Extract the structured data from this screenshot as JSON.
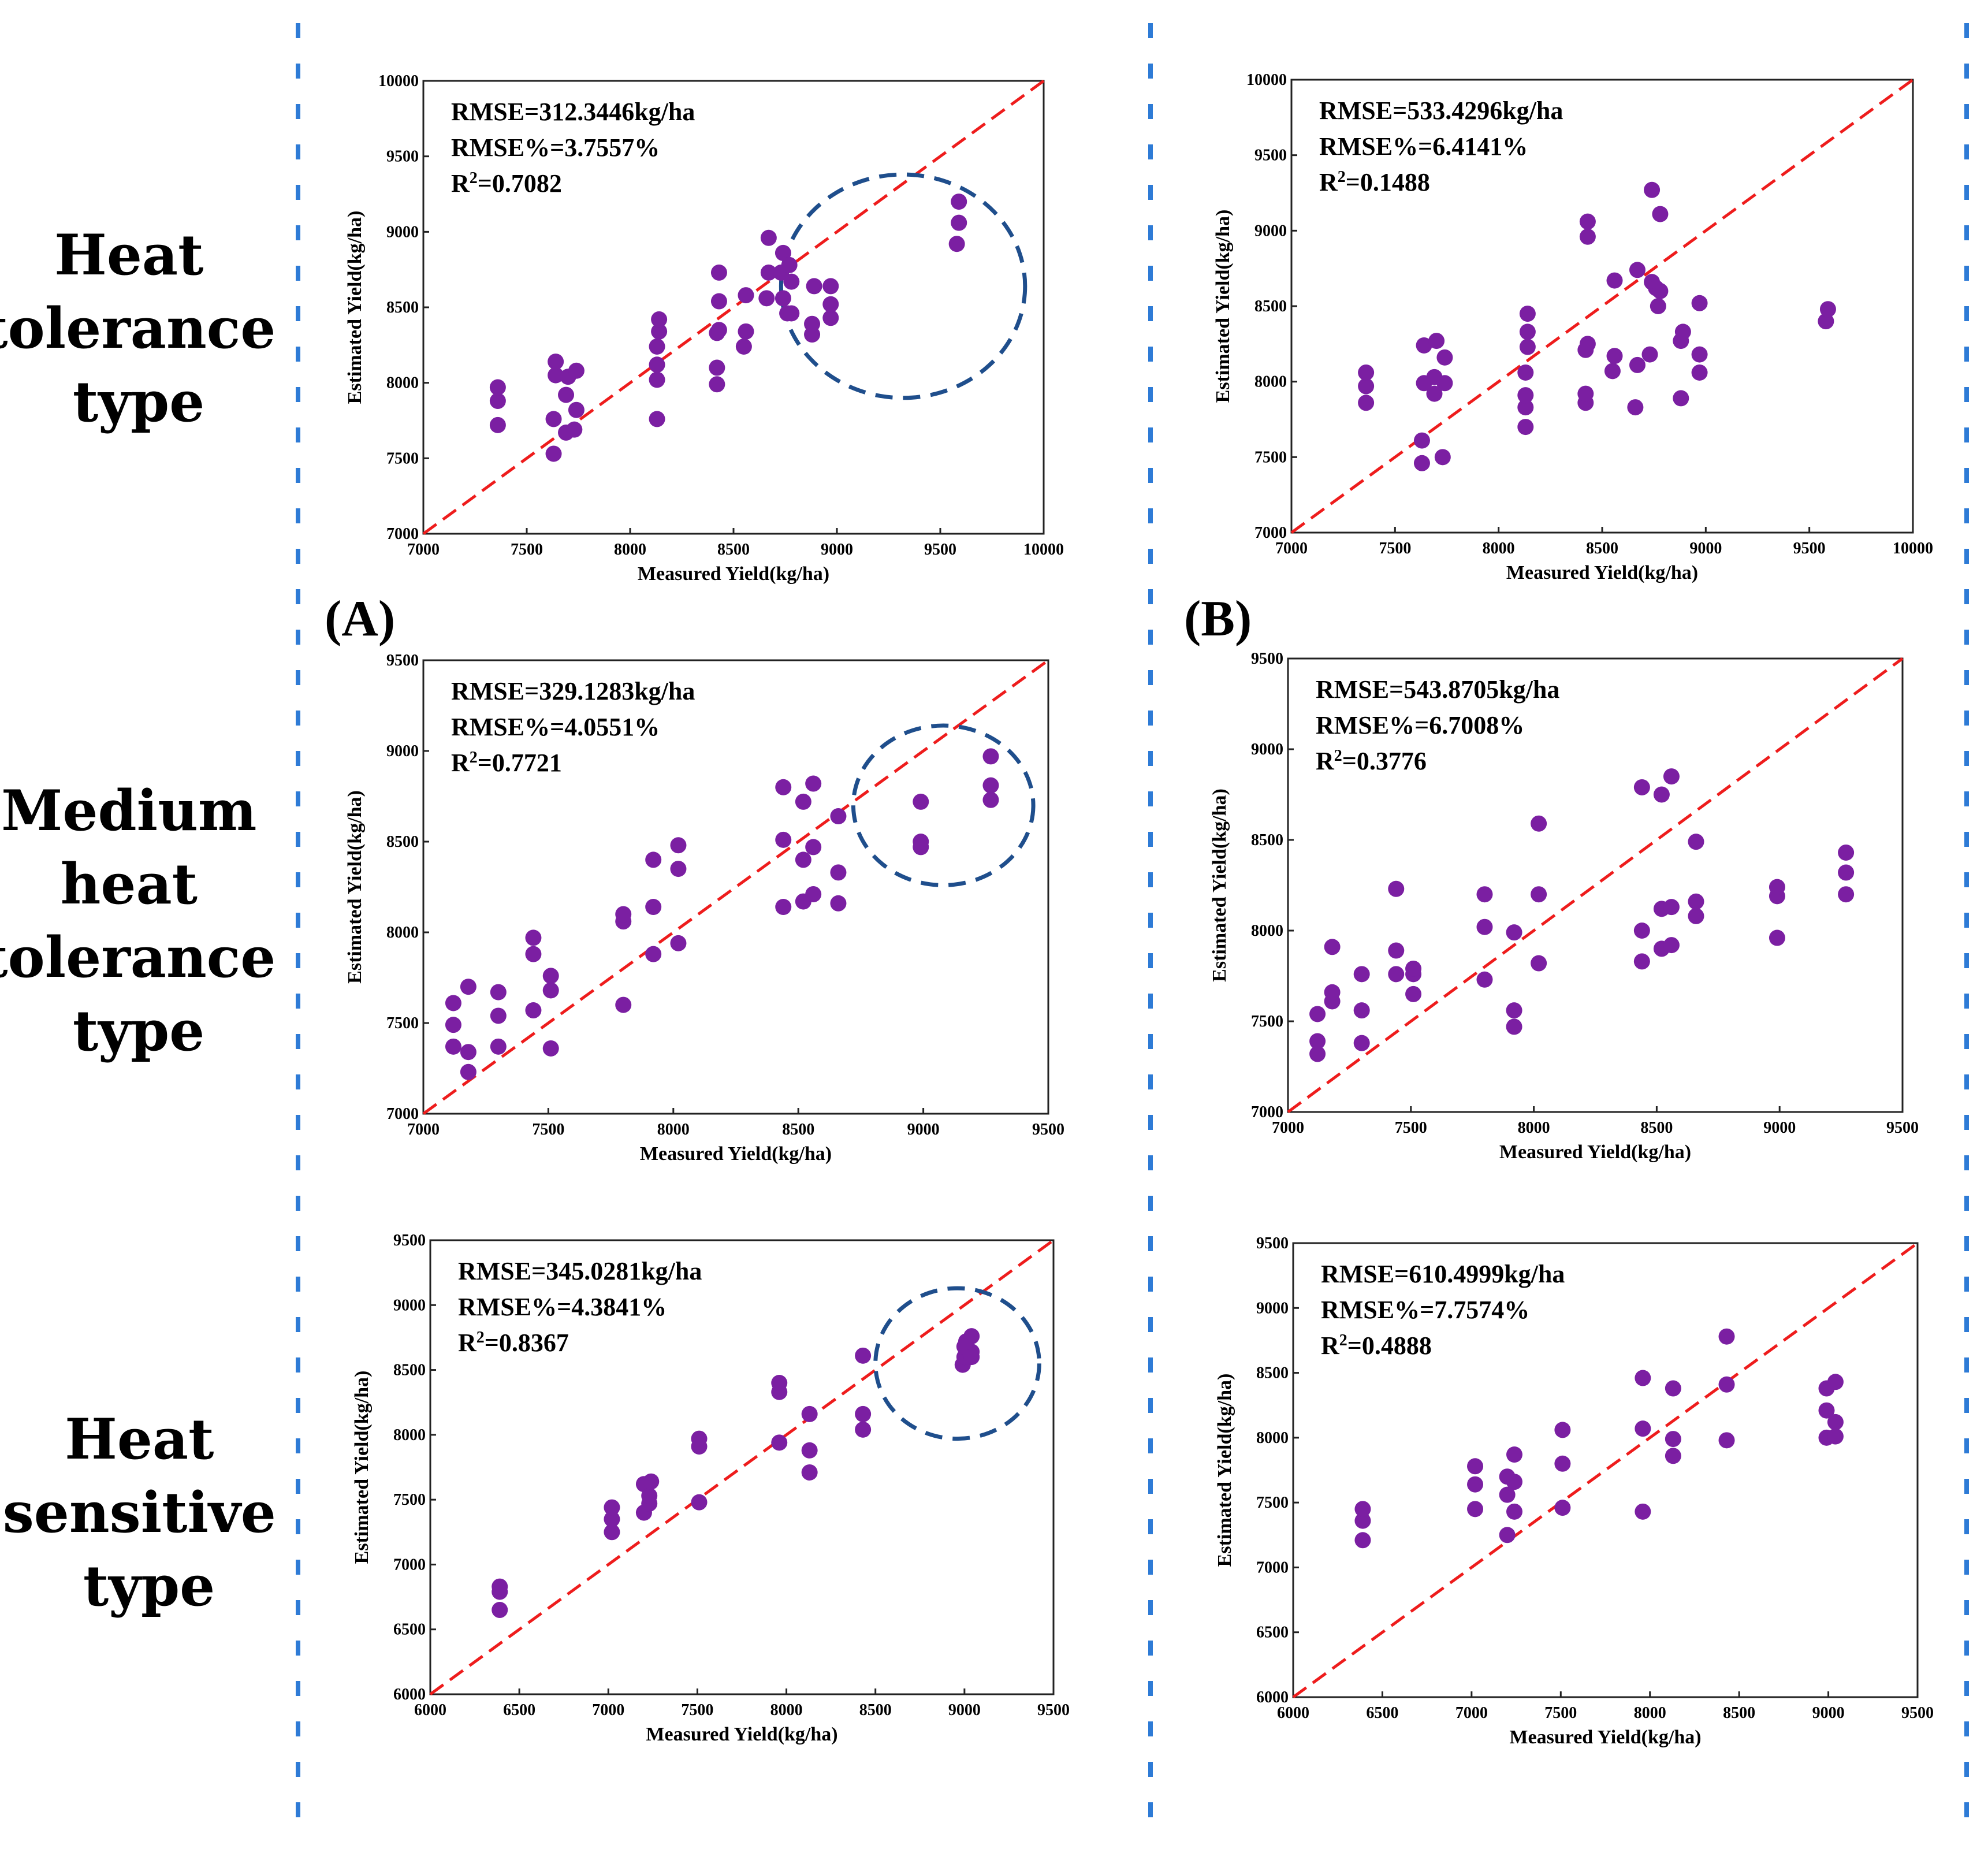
{
  "row_labels": [
    {
      "lines": [
        "Heat",
        "tolerance",
        "type"
      ]
    },
    {
      "lines": [
        "Medium",
        "heat",
        "tolerance",
        "type"
      ]
    },
    {
      "lines": [
        "Heat",
        "sensitive",
        "type"
      ]
    }
  ],
  "column_labels": [
    "(A)",
    "(B)"
  ],
  "colors": {
    "points": "#7b1fa2",
    "diagonal": "#ee1c1c",
    "circle": "#1f4e8c",
    "separator": "#2e7bd6"
  },
  "chart_data": [
    {
      "id": "heat-tolerance-A",
      "type": "scatter",
      "xlabel": "Measured Yield(kg/ha)",
      "ylabel": "Estimated Yield(kg/ha)",
      "xlim": [
        7000,
        10000
      ],
      "ylim": [
        7000,
        10000
      ],
      "xticks": [
        7000,
        7500,
        8000,
        8500,
        9000,
        9500,
        10000
      ],
      "yticks": [
        7000,
        7500,
        8000,
        8500,
        9000,
        9500,
        10000
      ],
      "annotations": [
        "RMSE=312.3446kg/ha",
        "RMSE%=3.7557%",
        "R2=0.7082"
      ],
      "highlight_circle": {
        "center": [
          9320,
          8640
        ],
        "radius": [
          590,
          740
        ]
      },
      "x": [
        7360,
        7360,
        7360,
        7630,
        7630,
        7640,
        7640,
        7690,
        7690,
        7700,
        7730,
        7740,
        7740,
        8130,
        8130,
        8130,
        8130,
        8140,
        8140,
        8420,
        8420,
        8420,
        8430,
        8430,
        8430,
        8550,
        8560,
        8560,
        8660,
        8670,
        8670,
        8730,
        8740,
        8740,
        8760,
        8770,
        8780,
        8780,
        8880,
        8880,
        8890,
        8970,
        8970,
        8970,
        9580,
        9590,
        9590
      ],
      "y": [
        7720,
        7880,
        7970,
        7530,
        7760,
        8050,
        8140,
        7670,
        7920,
        8040,
        7690,
        7820,
        8080,
        7760,
        8020,
        8120,
        8240,
        8340,
        8420,
        7990,
        8100,
        8330,
        8350,
        8540,
        8730,
        8240,
        8340,
        8580,
        8560,
        8730,
        8960,
        8730,
        8560,
        8860,
        8460,
        8780,
        8460,
        8670,
        8320,
        8390,
        8640,
        8430,
        8520,
        8640,
        8920,
        9060,
        9200
      ]
    },
    {
      "id": "heat-tolerance-B",
      "type": "scatter",
      "xlabel": "Measured Yield(kg/ha)",
      "ylabel": "Estimated Yield(kg/ha)",
      "xlim": [
        7000,
        10000
      ],
      "ylim": [
        7000,
        10000
      ],
      "xticks": [
        7000,
        7500,
        8000,
        8500,
        9000,
        9500,
        10000
      ],
      "yticks": [
        7000,
        7500,
        8000,
        8500,
        9000,
        9500,
        10000
      ],
      "annotations": [
        "RMSE=533.4296kg/ha",
        "RMSE%=6.4141%",
        "R2=0.1488"
      ],
      "x": [
        7360,
        7360,
        7360,
        7630,
        7630,
        7640,
        7640,
        7690,
        7690,
        7700,
        7730,
        7740,
        7740,
        8130,
        8130,
        8130,
        8130,
        8140,
        8140,
        8140,
        8420,
        8420,
        8420,
        8430,
        8430,
        8430,
        8550,
        8560,
        8560,
        8660,
        8670,
        8670,
        8730,
        8740,
        8740,
        8760,
        8770,
        8780,
        8780,
        8880,
        8880,
        8890,
        8970,
        8970,
        8970,
        9580,
        9590
      ],
      "y": [
        7860,
        7970,
        8060,
        7460,
        7610,
        7990,
        8240,
        7920,
        8030,
        8270,
        7500,
        7990,
        8160,
        7700,
        7830,
        7910,
        8060,
        8230,
        8330,
        8450,
        7860,
        7920,
        8210,
        8250,
        8960,
        9060,
        8070,
        8170,
        8670,
        7830,
        8110,
        8740,
        8180,
        8660,
        9270,
        8620,
        8500,
        8600,
        9110,
        7890,
        8270,
        8330,
        8060,
        8180,
        8520,
        8400,
        8480
      ]
    },
    {
      "id": "medium-heat-tolerance-A",
      "type": "scatter",
      "xlabel": "Measured Yield(kg/ha)",
      "ylabel": "Estimated Yield(kg/ha)",
      "xlim": [
        7000,
        9500
      ],
      "ylim": [
        7000,
        9500
      ],
      "xticks": [
        7000,
        7500,
        8000,
        8500,
        9000,
        9500
      ],
      "yticks": [
        7000,
        7500,
        8000,
        8500,
        9000,
        9500
      ],
      "annotations": [
        "RMSE=329.1283kg/ha",
        "RMSE%=4.0551%",
        "R2=0.7721"
      ],
      "highlight_circle": {
        "center": [
          9080,
          8700
        ],
        "radius": [
          360,
          440
        ]
      },
      "x": [
        7120,
        7120,
        7120,
        7180,
        7180,
        7180,
        7300,
        7300,
        7300,
        7440,
        7440,
        7440,
        7510,
        7510,
        7510,
        7800,
        7800,
        7800,
        7920,
        7920,
        7920,
        8020,
        8020,
        8020,
        8440,
        8440,
        8440,
        8520,
        8520,
        8520,
        8560,
        8560,
        8560,
        8660,
        8660,
        8660,
        8990,
        8990,
        8990,
        9270,
        9270,
        9270
      ],
      "y": [
        7370,
        7490,
        7610,
        7230,
        7340,
        7700,
        7370,
        7540,
        7670,
        7570,
        7880,
        7970,
        7360,
        7680,
        7760,
        7600,
        8060,
        8100,
        7880,
        8140,
        8400,
        7940,
        8350,
        8480,
        8140,
        8510,
        8800,
        8170,
        8400,
        8720,
        8210,
        8470,
        8820,
        8160,
        8330,
        8640,
        8470,
        8500,
        8720,
        8730,
        8810,
        8970
      ]
    },
    {
      "id": "medium-heat-tolerance-B",
      "type": "scatter",
      "xlabel": "Measured Yield(kg/ha)",
      "ylabel": "Estimated Yield(kg/ha)",
      "xlim": [
        7000,
        9500
      ],
      "ylim": [
        7000,
        9500
      ],
      "xticks": [
        7000,
        7500,
        8000,
        8500,
        9000,
        9500
      ],
      "yticks": [
        7000,
        7500,
        8000,
        8500,
        9000,
        9500
      ],
      "annotations": [
        "RMSE=543.8705kg/ha",
        "RMSE%=6.7008%",
        "R2=0.3776"
      ],
      "x": [
        7120,
        7120,
        7120,
        7180,
        7180,
        7180,
        7300,
        7300,
        7300,
        7440,
        7440,
        7440,
        7510,
        7510,
        7510,
        7800,
        7800,
        7800,
        7920,
        7920,
        7920,
        8020,
        8020,
        8020,
        8440,
        8440,
        8440,
        8520,
        8520,
        8520,
        8560,
        8560,
        8560,
        8660,
        8660,
        8660,
        8990,
        8990,
        8990,
        9270,
        9270,
        9270
      ],
      "y": [
        7320,
        7390,
        7540,
        7610,
        7660,
        7910,
        7380,
        7560,
        7760,
        7760,
        7890,
        8230,
        7650,
        7760,
        7790,
        7730,
        8020,
        8200,
        7470,
        7560,
        7990,
        7820,
        8200,
        8590,
        7830,
        8000,
        8790,
        7900,
        8120,
        8750,
        7920,
        8130,
        8850,
        8080,
        8160,
        8490,
        7960,
        8190,
        8240,
        8200,
        8320,
        8430
      ]
    },
    {
      "id": "heat-sensitive-A",
      "type": "scatter",
      "xlabel": "Measured Yield(kg/ha)",
      "ylabel": "Estimated Yield(kg/ha)",
      "xlim": [
        6000,
        9500
      ],
      "ylim": [
        6000,
        9500
      ],
      "xticks": [
        6000,
        6500,
        7000,
        7500,
        8000,
        8500,
        9000,
        9500
      ],
      "yticks": [
        6000,
        6500,
        7000,
        7500,
        8000,
        8500,
        9000,
        9500
      ],
      "annotations": [
        "RMSE=345.0281kg/ha",
        "RMSE%=4.3841%",
        "R2=0.8367"
      ],
      "highlight_circle": {
        "center": [
          8960,
          8550
        ],
        "radius": [
          460,
          580
        ]
      },
      "x": [
        6390,
        6390,
        6390,
        7020,
        7020,
        7020,
        7200,
        7200,
        7230,
        7230,
        7240,
        7510,
        7510,
        7510,
        7960,
        7960,
        7960,
        8130,
        8130,
        8130,
        8430,
        8430,
        8430,
        8990,
        9000,
        9010,
        9040,
        9040
      ],
      "y": [
        6650,
        6790,
        6830,
        7250,
        7350,
        7440,
        7400,
        7620,
        7470,
        7530,
        7640,
        7480,
        7910,
        7970,
        7940,
        8330,
        8400,
        7710,
        7880,
        8160,
        8040,
        8160,
        8610,
        8540,
        8600,
        8720,
        8640,
        8760
      ],
      "extra_x": [
        9000,
        9040
      ],
      "extra_y": [
        8680,
        8600
      ]
    },
    {
      "id": "heat-sensitive-B",
      "type": "scatter",
      "xlabel": "Measured Yield(kg/ha)",
      "ylabel": "Estimated Yield(kg/ha)",
      "xlim": [
        6000,
        9500
      ],
      "ylim": [
        6000,
        9500
      ],
      "xticks": [
        6000,
        6500,
        7000,
        7500,
        8000,
        8500,
        9000,
        9500
      ],
      "yticks": [
        6000,
        6500,
        7000,
        7500,
        8000,
        8500,
        9000,
        9500
      ],
      "annotations": [
        "RMSE=610.4999kg/ha",
        "RMSE%=7.7574%",
        "R2=0.4888"
      ],
      "x": [
        6390,
        6390,
        6390,
        7020,
        7020,
        7020,
        7200,
        7200,
        7200,
        7240,
        7240,
        7240,
        7510,
        7510,
        7510,
        7960,
        7960,
        7960,
        8130,
        8130,
        8130,
        8430,
        8430,
        8430,
        8990,
        8990,
        8990,
        9040,
        9040,
        9040
      ],
      "y": [
        7210,
        7360,
        7450,
        7450,
        7640,
        7780,
        7250,
        7560,
        7700,
        7430,
        7660,
        7870,
        7460,
        7800,
        8060,
        7430,
        8070,
        8460,
        7860,
        7990,
        8380,
        7980,
        8410,
        8780,
        8000,
        8210,
        8380,
        8010,
        8120,
        8430
      ]
    }
  ]
}
